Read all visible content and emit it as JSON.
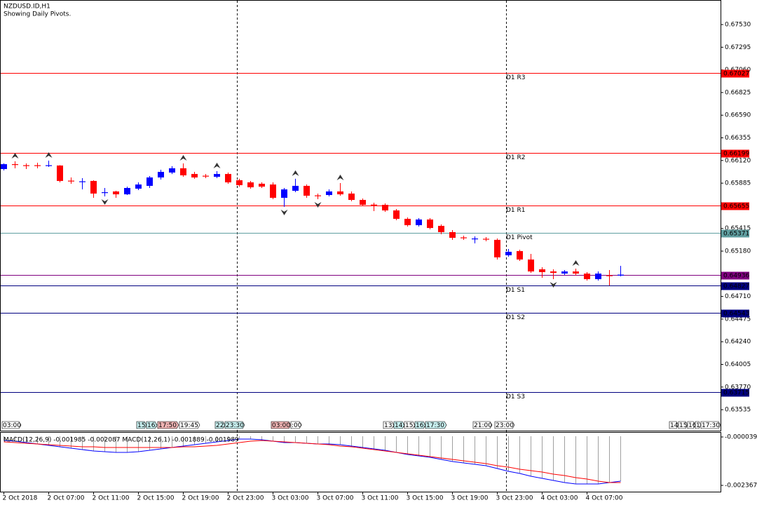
{
  "chart_data": {
    "type": "candlestick",
    "title": "NZDUSD.ID,H1",
    "subtitle": "Showing Daily Pivots.",
    "categories": [
      "2 Oct 2018",
      null,
      null,
      null,
      "2 Oct 07:00",
      null,
      null,
      null,
      "2 Oct 11:00",
      null,
      null,
      null,
      "2 Oct 15:00",
      null,
      null,
      null,
      "2 Oct 19:00",
      null,
      null,
      null,
      "2 Oct 23:00",
      null,
      null,
      null,
      "3 Oct 03:00",
      null,
      null,
      null,
      "3 Oct 07:00",
      null,
      null,
      null,
      "3 Oct 11:00",
      null,
      null,
      null,
      "3 Oct 15:00",
      null,
      null,
      null,
      "3 Oct 19:00",
      null,
      null,
      null,
      "3 Oct 23:00",
      null,
      null,
      null,
      "4 Oct 03:00",
      null,
      null,
      null,
      "4 Oct 07:00",
      null,
      null,
      null
    ],
    "open": [
      0.66031,
      0.66082,
      0.66071,
      0.66071,
      0.66068,
      0.66068,
      0.65911,
      0.659,
      0.65908,
      0.65788,
      0.65799,
      0.65769,
      0.65828,
      0.65857,
      0.65944,
      0.65995,
      0.66039,
      0.6598,
      0.65962,
      0.65951,
      0.6598,
      0.65915,
      0.65893,
      0.65879,
      0.65871,
      0.65733,
      0.65806,
      0.65857,
      0.65758,
      0.65762,
      0.65799,
      0.65777,
      0.65711,
      0.65663,
      0.6566,
      0.65602,
      0.65515,
      0.65449,
      0.65508,
      0.65442,
      0.65377,
      0.65322,
      0.65308,
      0.65308,
      0.65297,
      0.65137,
      0.6518,
      0.65093,
      0.64991,
      0.64969,
      0.64947,
      0.64969,
      0.64947,
      0.64889,
      0.64929,
      0.64926
    ],
    "high": [
      0.6609,
      0.66111,
      0.6609,
      0.66097,
      0.66119,
      0.66071,
      0.65944,
      0.65937,
      0.65915,
      0.65835,
      0.65806,
      0.65849,
      0.65893,
      0.65959,
      0.66024,
      0.66061,
      0.6609,
      0.66002,
      0.6598,
      0.6601,
      0.65995,
      0.6593,
      0.65908,
      0.65893,
      0.65893,
      0.65835,
      0.6593,
      0.65871,
      0.65777,
      0.6582,
      0.65886,
      0.65799,
      0.65726,
      0.65682,
      0.65675,
      0.65617,
      0.65529,
      0.65522,
      0.65522,
      0.65457,
      0.65398,
      0.6534,
      0.65333,
      0.65326,
      0.65311,
      0.65202,
      0.65195,
      0.65151,
      0.65013,
      0.64991,
      0.64984,
      0.64998,
      0.64962,
      0.64969,
      0.64984,
      0.65027
    ],
    "low": [
      0.66017,
      0.66039,
      0.66031,
      0.66039,
      0.66053,
      0.65893,
      0.65879,
      0.6582,
      0.65733,
      0.65748,
      0.65733,
      0.65762,
      0.65813,
      0.65835,
      0.65922,
      0.6598,
      0.65951,
      0.6593,
      0.65937,
      0.65937,
      0.65879,
      0.65849,
      0.65828,
      0.65835,
      0.65719,
      0.65639,
      0.65791,
      0.65733,
      0.65719,
      0.65748,
      0.65755,
      0.65697,
      0.65646,
      0.65595,
      0.65588,
      0.655,
      0.65435,
      0.65435,
      0.65406,
      0.65355,
      0.65297,
      0.65297,
      0.6526,
      0.65282,
      0.65093,
      0.65122,
      0.65078,
      0.64955,
      0.64904,
      0.64889,
      0.64933,
      0.64926,
      0.64875,
      0.64875,
      0.64824,
      0.64918
    ],
    "close": [
      0.66082,
      0.66078,
      0.66068,
      0.66068,
      0.66071,
      0.65908,
      0.65908,
      0.65904,
      0.65777,
      0.65791,
      0.65769,
      0.65835,
      0.65871,
      0.65944,
      0.66002,
      0.66039,
      0.65966,
      0.65944,
      0.65959,
      0.6598,
      0.65893,
      0.65864,
      0.65842,
      0.65849,
      0.65733,
      0.6582,
      0.65857,
      0.65755,
      0.65755,
      0.65799,
      0.65769,
      0.65711,
      0.6566,
      0.6566,
      0.65602,
      0.65515,
      0.65449,
      0.65508,
      0.6542,
      0.65377,
      0.65318,
      0.65318,
      0.65311,
      0.65304,
      0.65115,
      0.65173,
      0.65093,
      0.64969,
      0.64962,
      0.64955,
      0.64969,
      0.64947,
      0.64889,
      0.64947,
      0.64926,
      0.64936
    ],
    "up_color": "#0000ff",
    "down_color": "#ff0000",
    "ylim": [
      0.63434,
      0.67763
    ],
    "yticks": [
      {
        "value": 0.6753,
        "label": "0.67530"
      },
      0.67295,
      {
        "value": 0.6706,
        "label": "0.67060"
      },
      0.66825,
      {
        "value": 0.6659,
        "label": "0.66590"
      },
      0.66355,
      {
        "value": 0.6612,
        "label": "0.66120"
      },
      0.65885,
      0.65415,
      {
        "value": 0.6518,
        "label": "0.65180"
      },
      {
        "value": 0.6471,
        "label": "0.64710"
      },
      0.64475,
      {
        "value": 0.6424,
        "label": "0.64240"
      },
      0.64005,
      {
        "value": 0.6377,
        "label": "0.63770"
      },
      0.63535
    ],
    "current_price": {
      "value": 0.64936,
      "color": "#800080"
    },
    "levels": [
      {
        "name": "D1 R3",
        "value": 0.67027,
        "color": "#ff0000"
      },
      {
        "name": "D1 R2",
        "value": 0.66199,
        "color": "#ff0000"
      },
      {
        "name": "D1 R1",
        "value": 0.65655,
        "color": "#ff0000"
      },
      {
        "name": "D1 Pivot",
        "value": 0.65371,
        "color": "#5f9ea0"
      },
      {
        "name": "D1 S1",
        "value": 0.64827,
        "color": "#000080"
      },
      {
        "name": "D1 S2",
        "value": 0.64543,
        "color": "#000080"
      },
      {
        "name": "D1 S3",
        "value": 0.63715,
        "color": "#000080"
      }
    ],
    "events": [
      "03:00",
      "15:",
      "16:",
      "17:50",
      "19:45",
      "22:",
      "23:30",
      "03:00",
      ":00",
      "13:",
      "14:",
      "15:",
      "16:",
      "17:30",
      "21:00",
      "23:00",
      "14:",
      "15",
      "16",
      "1",
      "17:30"
    ],
    "indicator": {
      "label": "MACD(12,26,9) -0.001985 -0.002087 MACD(12,26,1) -0.001889 -0.001989",
      "ylim": [
        -0.002704,
        0.000163
      ],
      "yticks": [
        -3.9e-05,
        -0.002367
      ],
      "histogram_color": "#a0a0a0",
      "series": [
        {
          "color": "#0000ff",
          "values": [
            -0.000208,
            -0.000241,
            -0.000309,
            -0.000376,
            -0.000444,
            -0.000511,
            -0.000579,
            -0.000646,
            -0.000714,
            -0.000748,
            -0.000781,
            -0.000781,
            -0.000748,
            -0.00068,
            -0.000613,
            -0.000545,
            -0.000478,
            -0.00041,
            -0.000343,
            -0.000275,
            -0.000208,
            -0.00014,
            -0.00014,
            -0.000174,
            -0.000241,
            -0.000309,
            -0.000309,
            -0.000343,
            -0.000376,
            -0.000376,
            -0.00041,
            -0.000478,
            -0.000545,
            -0.000613,
            -0.00068,
            -0.000781,
            -0.000883,
            -0.00095,
            -0.001017,
            -0.001119,
            -0.00122,
            -0.001287,
            -0.001355,
            -0.001422,
            -0.001557,
            -0.001692,
            -0.001793,
            -0.001928,
            -0.002029,
            -0.002131,
            -0.002232,
            -0.002299,
            -0.002299,
            -0.002299,
            -0.002232,
            -0.002164
          ]
        },
        {
          "color": "#ff0000",
          "values": [
            -0.000275,
            -0.000309,
            -0.000343,
            -0.000376,
            -0.00041,
            -0.000444,
            -0.000478,
            -0.000511,
            -0.000511,
            -0.000545,
            -0.000545,
            -0.000545,
            -0.000545,
            -0.000545,
            -0.000545,
            -0.000545,
            -0.000511,
            -0.000511,
            -0.000478,
            -0.000444,
            -0.000376,
            -0.000309,
            -0.000241,
            -0.000208,
            -0.000241,
            -0.000275,
            -0.000309,
            -0.000343,
            -0.000376,
            -0.00041,
            -0.000478,
            -0.000511,
            -0.000579,
            -0.000646,
            -0.000714,
            -0.000781,
            -0.000849,
            -0.000916,
            -0.000984,
            -0.001051,
            -0.001119,
            -0.001186,
            -0.001254,
            -0.001321,
            -0.001422,
            -0.00149,
            -0.001591,
            -0.001659,
            -0.001726,
            -0.001827,
            -0.001894,
            -0.001996,
            -0.002063,
            -0.002164,
            -0.002232,
            -0.002232
          ]
        }
      ]
    }
  }
}
